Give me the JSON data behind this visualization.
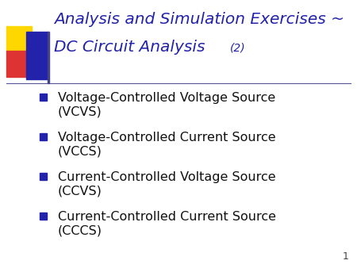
{
  "title_line1": "Analysis and Simulation Exercises ~",
  "title_line2": "DC Circuit Analysis",
  "title_suffix": "(2)",
  "title_color": "#2222AA",
  "bullet_items": [
    "Voltage-Controlled Voltage Source\n(VCVS)",
    "Voltage-Controlled Current Source\n(VCCS)",
    "Current-Controlled Voltage Source\n(CCVS)",
    "Current-Controlled Current Source\n(CCCS)"
  ],
  "bullet_text_color": "#111111",
  "background_color": "#ffffff",
  "separator_color": "#555599",
  "page_number": "1",
  "bullet_square_color": "#2222AA",
  "decoration_yellow": "#FFD700",
  "decoration_red": "#DD3333",
  "decoration_blue": "#2222AA",
  "title_fontsize": 14.5,
  "suffix_fontsize": 10,
  "bullet_fontsize": 11.5,
  "page_fontsize": 9
}
